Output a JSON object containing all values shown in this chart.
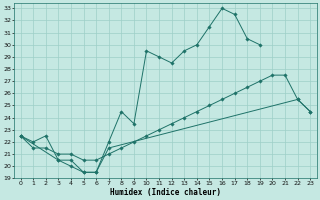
{
  "xlabel": "Humidex (Indice chaleur)",
  "xlim": [
    -0.5,
    23.5
  ],
  "ylim": [
    19,
    33.4
  ],
  "yticks": [
    19,
    20,
    21,
    22,
    23,
    24,
    25,
    26,
    27,
    28,
    29,
    30,
    31,
    32,
    33
  ],
  "xticks": [
    0,
    1,
    2,
    3,
    4,
    5,
    6,
    7,
    8,
    9,
    10,
    11,
    12,
    13,
    14,
    15,
    16,
    17,
    18,
    19,
    20,
    21,
    22,
    23
  ],
  "bg_color": "#c5e8e2",
  "grid_color": "#9ecfc7",
  "line_color": "#1e7268",
  "series1_x": [
    0,
    1,
    2,
    3,
    4,
    5,
    6,
    7,
    8,
    9,
    10,
    11,
    12,
    13,
    14,
    15,
    16,
    17,
    18,
    19
  ],
  "series1_y": [
    22.5,
    22.0,
    22.5,
    20.5,
    20.5,
    19.5,
    19.5,
    22.0,
    24.5,
    23.5,
    29.5,
    29.0,
    28.5,
    29.5,
    30.0,
    31.5,
    33.0,
    32.5,
    30.5,
    30.0
  ],
  "series2_x": [
    0,
    3,
    4,
    5,
    6,
    7,
    22,
    23
  ],
  "series2_y": [
    22.5,
    20.5,
    20.0,
    19.5,
    19.5,
    21.5,
    25.5,
    24.5
  ],
  "series3_x": [
    0,
    1,
    2,
    3,
    4,
    5,
    6,
    7,
    8,
    9,
    10,
    11,
    12,
    13,
    14,
    15,
    16,
    17,
    18,
    19,
    20,
    21,
    22,
    23
  ],
  "series3_y": [
    22.5,
    21.5,
    21.5,
    21.0,
    21.0,
    20.5,
    20.5,
    21.0,
    21.5,
    22.0,
    22.5,
    23.0,
    23.5,
    24.0,
    24.5,
    25.0,
    25.5,
    26.0,
    26.5,
    27.0,
    27.5,
    27.5,
    25.5,
    24.5
  ]
}
